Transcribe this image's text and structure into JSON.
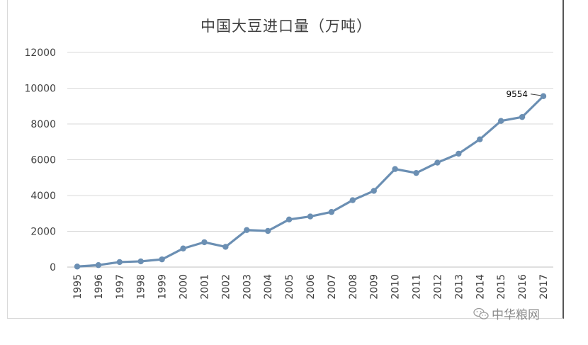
{
  "chart_data": {
    "type": "line",
    "title": "中国大豆进口量（万吨）",
    "xlabel": "",
    "ylabel": "",
    "ylim": [
      0,
      12000
    ],
    "yticks": [
      0,
      2000,
      4000,
      6000,
      8000,
      10000,
      12000
    ],
    "grid": true,
    "legend": "none",
    "x": [
      "1995",
      "1996",
      "1997",
      "1998",
      "1999",
      "2000",
      "2001",
      "2002",
      "2003",
      "2004",
      "2005",
      "2006",
      "2007",
      "2008",
      "2009",
      "2010",
      "2011",
      "2012",
      "2013",
      "2014",
      "2015",
      "2016",
      "2017"
    ],
    "series": [
      {
        "values": [
          30,
          110,
          280,
          320,
          430,
          1040,
          1390,
          1130,
          2070,
          2020,
          2660,
          2830,
          3080,
          3740,
          4260,
          5480,
          5260,
          5840,
          6340,
          7140,
          8170,
          8390,
          9554
        ],
        "color": "#6b8fb3"
      }
    ],
    "annotation": {
      "label": "9554",
      "x": "2017"
    }
  },
  "watermark": {
    "text": "中华粮网",
    "icon": "wechat-icon"
  }
}
